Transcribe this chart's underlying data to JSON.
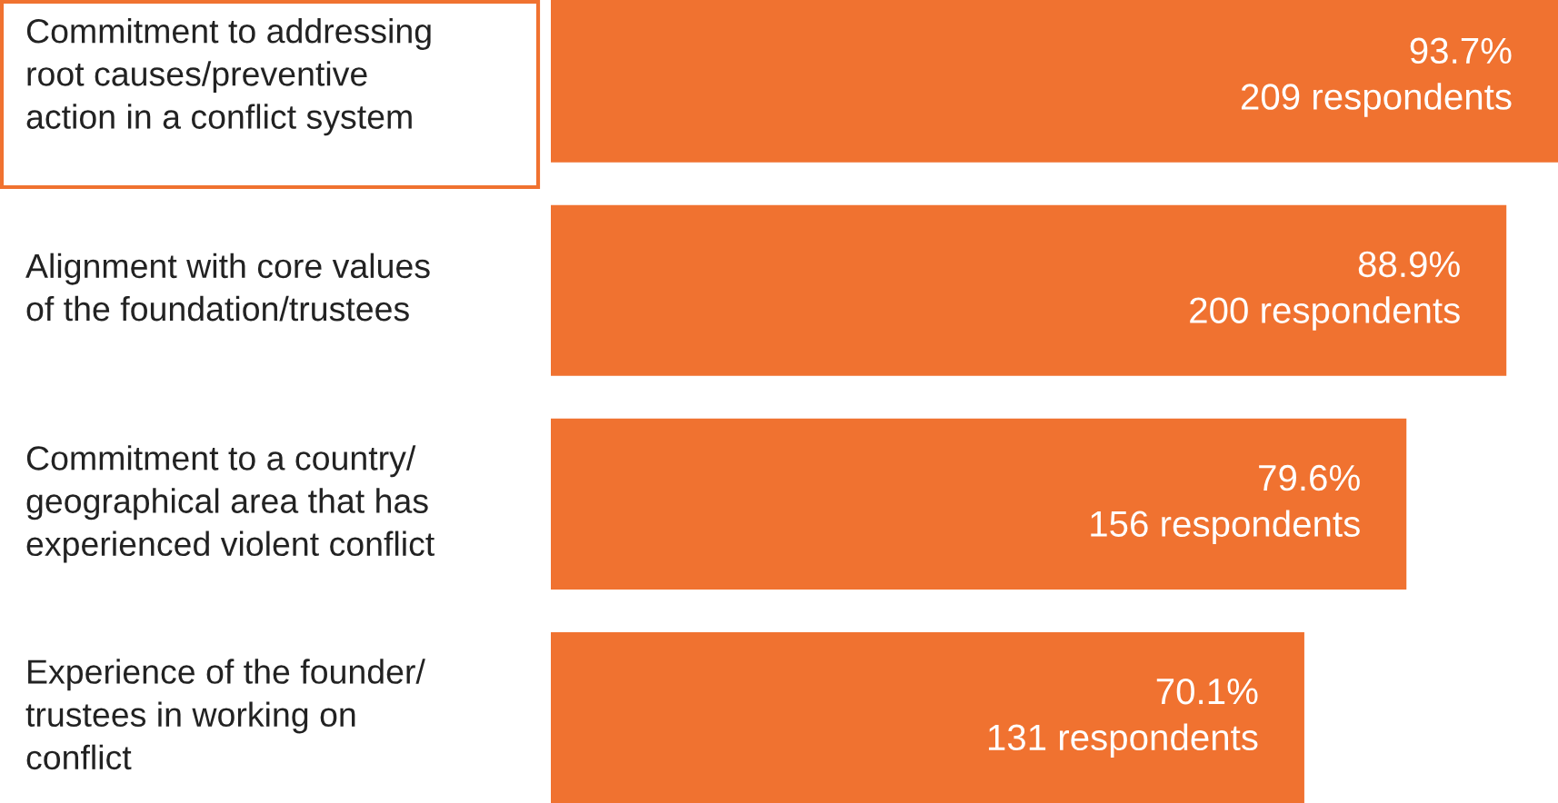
{
  "chart_data": {
    "type": "bar",
    "orientation": "horizontal",
    "categories": [
      "Commitment to addressing\nroot causes/preventive\naction in a conflict system",
      "Alignment with core values\nof the foundation/trustees",
      "Commitment to a country/\ngeographical area that has\nexperienced violent conflict",
      "Experience of the founder/\ntrustees in working on\nconflict"
    ],
    "values": [
      93.7,
      88.9,
      79.6,
      70.1
    ],
    "value_labels": [
      "93.7%\n209 respondents",
      "88.9%\n200 respondents",
      "79.6%\n156 respondents",
      "70.1%\n131 respondents"
    ],
    "color": "#f07230"
  }
}
